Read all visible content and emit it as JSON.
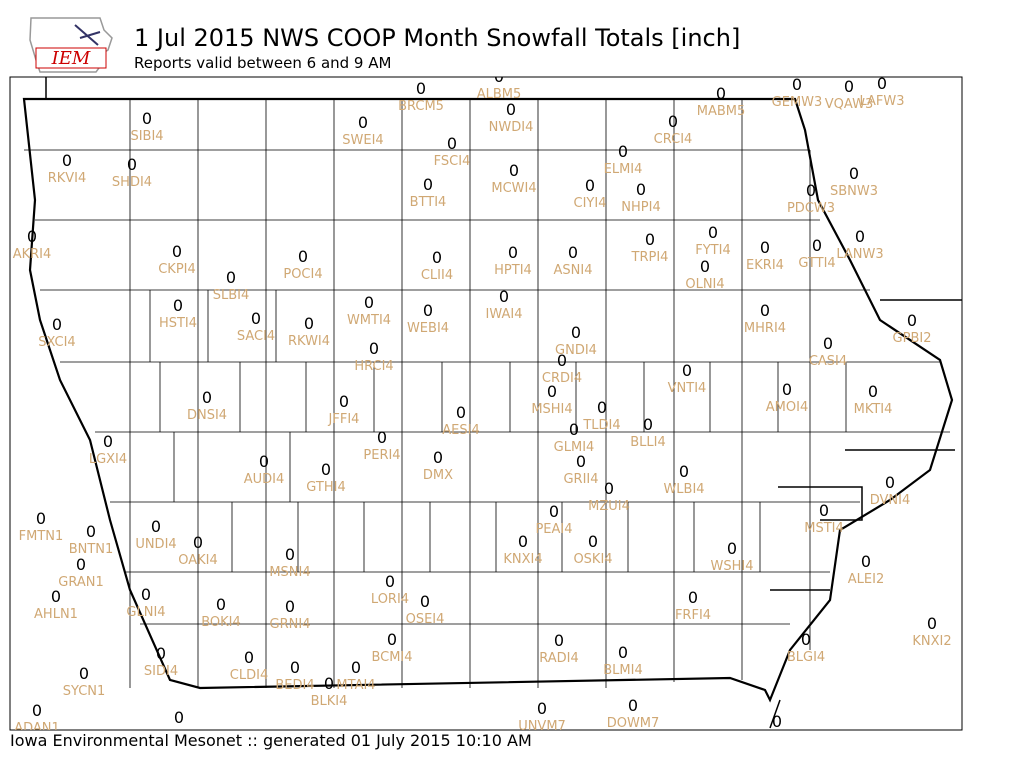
{
  "header": {
    "logo": "IEM",
    "title": "1 Jul 2015 NWS COOP Month Snowfall Totals [inch]",
    "subtitle": "Reports valid between 6 and 9 AM"
  },
  "footer": "Iowa Environmental Mesonet :: generated 01 July 2015 10:10 AM",
  "stations": [
    {
      "label": "BRCM5",
      "value": 0
    },
    {
      "label": "ALBM5",
      "value": 0
    },
    {
      "label": "NWDI4",
      "value": 0
    },
    {
      "label": "MABM5",
      "value": 0
    },
    {
      "label": "GEMW3",
      "value": 0
    },
    {
      "label": "VQAW3",
      "value": 0
    },
    {
      "label": "LAFW3",
      "value": 0
    },
    {
      "label": "SIBI4",
      "value": 0
    },
    {
      "label": "SWEI4",
      "value": 0
    },
    {
      "label": "CRCI4",
      "value": 0
    },
    {
      "label": "FSCI4",
      "value": 0
    },
    {
      "label": "ELMI4",
      "value": 0
    },
    {
      "label": "RKVI4",
      "value": 0
    },
    {
      "label": "SHDI4",
      "value": 0
    },
    {
      "label": "MCWI4",
      "value": 0
    },
    {
      "label": "CIYI4",
      "value": 0
    },
    {
      "label": "NHPI4",
      "value": 0
    },
    {
      "label": "BTTI4",
      "value": 0
    },
    {
      "label": "SBNW3",
      "value": 0
    },
    {
      "label": "PDCW3",
      "value": 0
    },
    {
      "label": "AKRI4",
      "value": 0
    },
    {
      "label": "CKPI4",
      "value": 0
    },
    {
      "label": "POCI4",
      "value": 0
    },
    {
      "label": "CLII4",
      "value": 0
    },
    {
      "label": "HPTI4",
      "value": 0
    },
    {
      "label": "ASNI4",
      "value": 0
    },
    {
      "label": "TRPI4",
      "value": 0
    },
    {
      "label": "FYTI4",
      "value": 0
    },
    {
      "label": "EKRI4",
      "value": 0
    },
    {
      "label": "GTTI4",
      "value": 0
    },
    {
      "label": "LANW3",
      "value": 0
    },
    {
      "label": "OLNI4",
      "value": 0
    },
    {
      "label": "SLBI4",
      "value": 0
    },
    {
      "label": "IWAI4",
      "value": 0
    },
    {
      "label": "HSTI4",
      "value": 0
    },
    {
      "label": "WMTI4",
      "value": 0
    },
    {
      "label": "WEBI4",
      "value": 0
    },
    {
      "label": "SXCI4",
      "value": 0
    },
    {
      "label": "SACI4",
      "value": 0
    },
    {
      "label": "RKWI4",
      "value": 0
    },
    {
      "label": "MHRI4",
      "value": 0
    },
    {
      "label": "GPBI2",
      "value": 0
    },
    {
      "label": "GNDI4",
      "value": 0
    },
    {
      "label": "HRCI4",
      "value": 0
    },
    {
      "label": "CASI4",
      "value": 0
    },
    {
      "label": "CRDI4",
      "value": 0
    },
    {
      "label": "VNTI4",
      "value": 0
    },
    {
      "label": "DNSI4",
      "value": 0
    },
    {
      "label": "JFFI4",
      "value": 0
    },
    {
      "label": "AMOI4",
      "value": 0
    },
    {
      "label": "MKTI4",
      "value": 0
    },
    {
      "label": "MSHI4",
      "value": 0
    },
    {
      "label": "TLDI4",
      "value": 0
    },
    {
      "label": "AESI4",
      "value": 0
    },
    {
      "label": "BLLI4",
      "value": 0
    },
    {
      "label": "LGXI4",
      "value": 0
    },
    {
      "label": "PERI4",
      "value": 0
    },
    {
      "label": "GLMI4",
      "value": 0
    },
    {
      "label": "AUDI4",
      "value": 0
    },
    {
      "label": "DMX",
      "value": 0
    },
    {
      "label": "GTHI4",
      "value": 0
    },
    {
      "label": "GRII4",
      "value": 0
    },
    {
      "label": "WLBI4",
      "value": 0
    },
    {
      "label": "DVNI4",
      "value": 0
    },
    {
      "label": "MZUI4",
      "value": 0
    },
    {
      "label": "FMTN1",
      "value": 0
    },
    {
      "label": "BNTN1",
      "value": 0
    },
    {
      "label": "UNDI4",
      "value": 0
    },
    {
      "label": "OAKI4",
      "value": 0
    },
    {
      "label": "PEAI4",
      "value": 0
    },
    {
      "label": "MSTI4",
      "value": 0
    },
    {
      "label": "KNXI4",
      "value": 0
    },
    {
      "label": "OSKI4",
      "value": 0
    },
    {
      "label": "MSNI4",
      "value": 0
    },
    {
      "label": "WSHI4",
      "value": 0
    },
    {
      "label": "GRAN1",
      "value": 0
    },
    {
      "label": "ALEI2",
      "value": 0
    },
    {
      "label": "AHLN1",
      "value": 0
    },
    {
      "label": "GLNI4",
      "value": 0
    },
    {
      "label": "LORI4",
      "value": 0
    },
    {
      "label": "OSEI4",
      "value": 0
    },
    {
      "label": "BOKI4",
      "value": 0
    },
    {
      "label": "GRNI4",
      "value": 0
    },
    {
      "label": "FRFI4",
      "value": 0
    },
    {
      "label": "KNXI2",
      "value": 0
    },
    {
      "label": "BCMI4",
      "value": 0
    },
    {
      "label": "RADI4",
      "value": 0
    },
    {
      "label": "BLMI4",
      "value": 0
    },
    {
      "label": "BLGI4",
      "value": 0
    },
    {
      "label": "SIDI4",
      "value": 0
    },
    {
      "label": "CLDI4",
      "value": 0
    },
    {
      "label": "BEDI4",
      "value": 0
    },
    {
      "label": "MTAI4",
      "value": 0
    },
    {
      "label": "BLKI4",
      "value": 0
    },
    {
      "label": "SYCN1",
      "value": 0
    },
    {
      "label": "UNVM7",
      "value": 0
    },
    {
      "label": "DOWM7",
      "value": 0
    },
    {
      "label": "ADAN1",
      "value": 0
    },
    {
      "label": null,
      "value": 0
    },
    {
      "label": null,
      "value": 0
    }
  ]
}
